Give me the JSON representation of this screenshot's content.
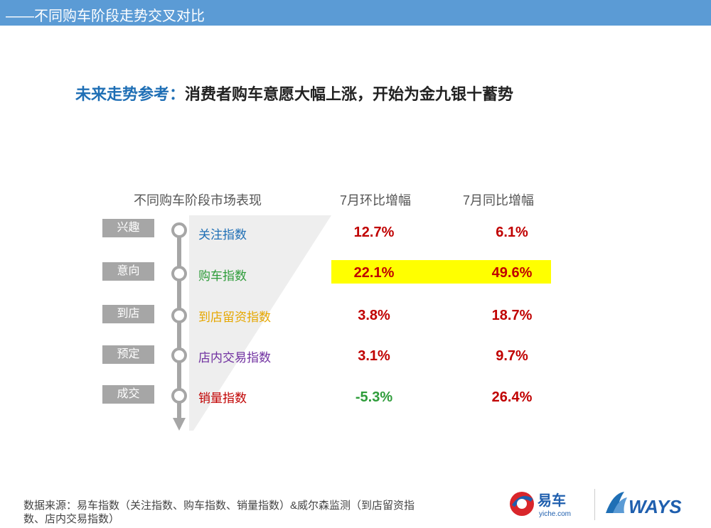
{
  "header": {
    "title": "——不同购车阶段走势交叉对比"
  },
  "headline": {
    "lead": "未来走势参考：",
    "rest": "消费者购车意愿大幅上涨，开始为金九银十蓄势"
  },
  "table": {
    "col_stage": "不同购车阶段市场表现",
    "col_mom": "7月环比增幅",
    "col_yoy": "7月同比增幅",
    "rows": [
      {
        "stage": "兴趣",
        "index": "关注指数",
        "index_color": "#1f6fb5",
        "mom": "12.7%",
        "yoy": "6.1%"
      },
      {
        "stage": "意向",
        "index": "购车指数",
        "index_color": "#2e9c3a",
        "mom": "22.1%",
        "yoy": "49.6%"
      },
      {
        "stage": "到店",
        "index": "到店留资指数",
        "index_color": "#e6a700",
        "mom": "3.8%",
        "yoy": "18.7%"
      },
      {
        "stage": "预定",
        "index": "店内交易指数",
        "index_color": "#7030a0",
        "mom": "3.1%",
        "yoy": "9.7%"
      },
      {
        "stage": "成交",
        "index": "销量指数",
        "index_color": "#c00000",
        "mom": "-5.3%",
        "yoy": "26.4%"
      }
    ]
  },
  "footer": {
    "line1": "数据来源：易车指数（关注指数、购车指数、销量指数）&威尔森监测（到店留资指",
    "line2": "数、店内交易指数）"
  },
  "logos": {
    "yiche_main": "易车",
    "yiche_sub": "yiche.com",
    "ways": "WAYS"
  },
  "colors": {
    "accent": "#5b9bd5",
    "highlight": "#ffff00",
    "value_red": "#c00000",
    "value_green": "#2e9c3a"
  }
}
